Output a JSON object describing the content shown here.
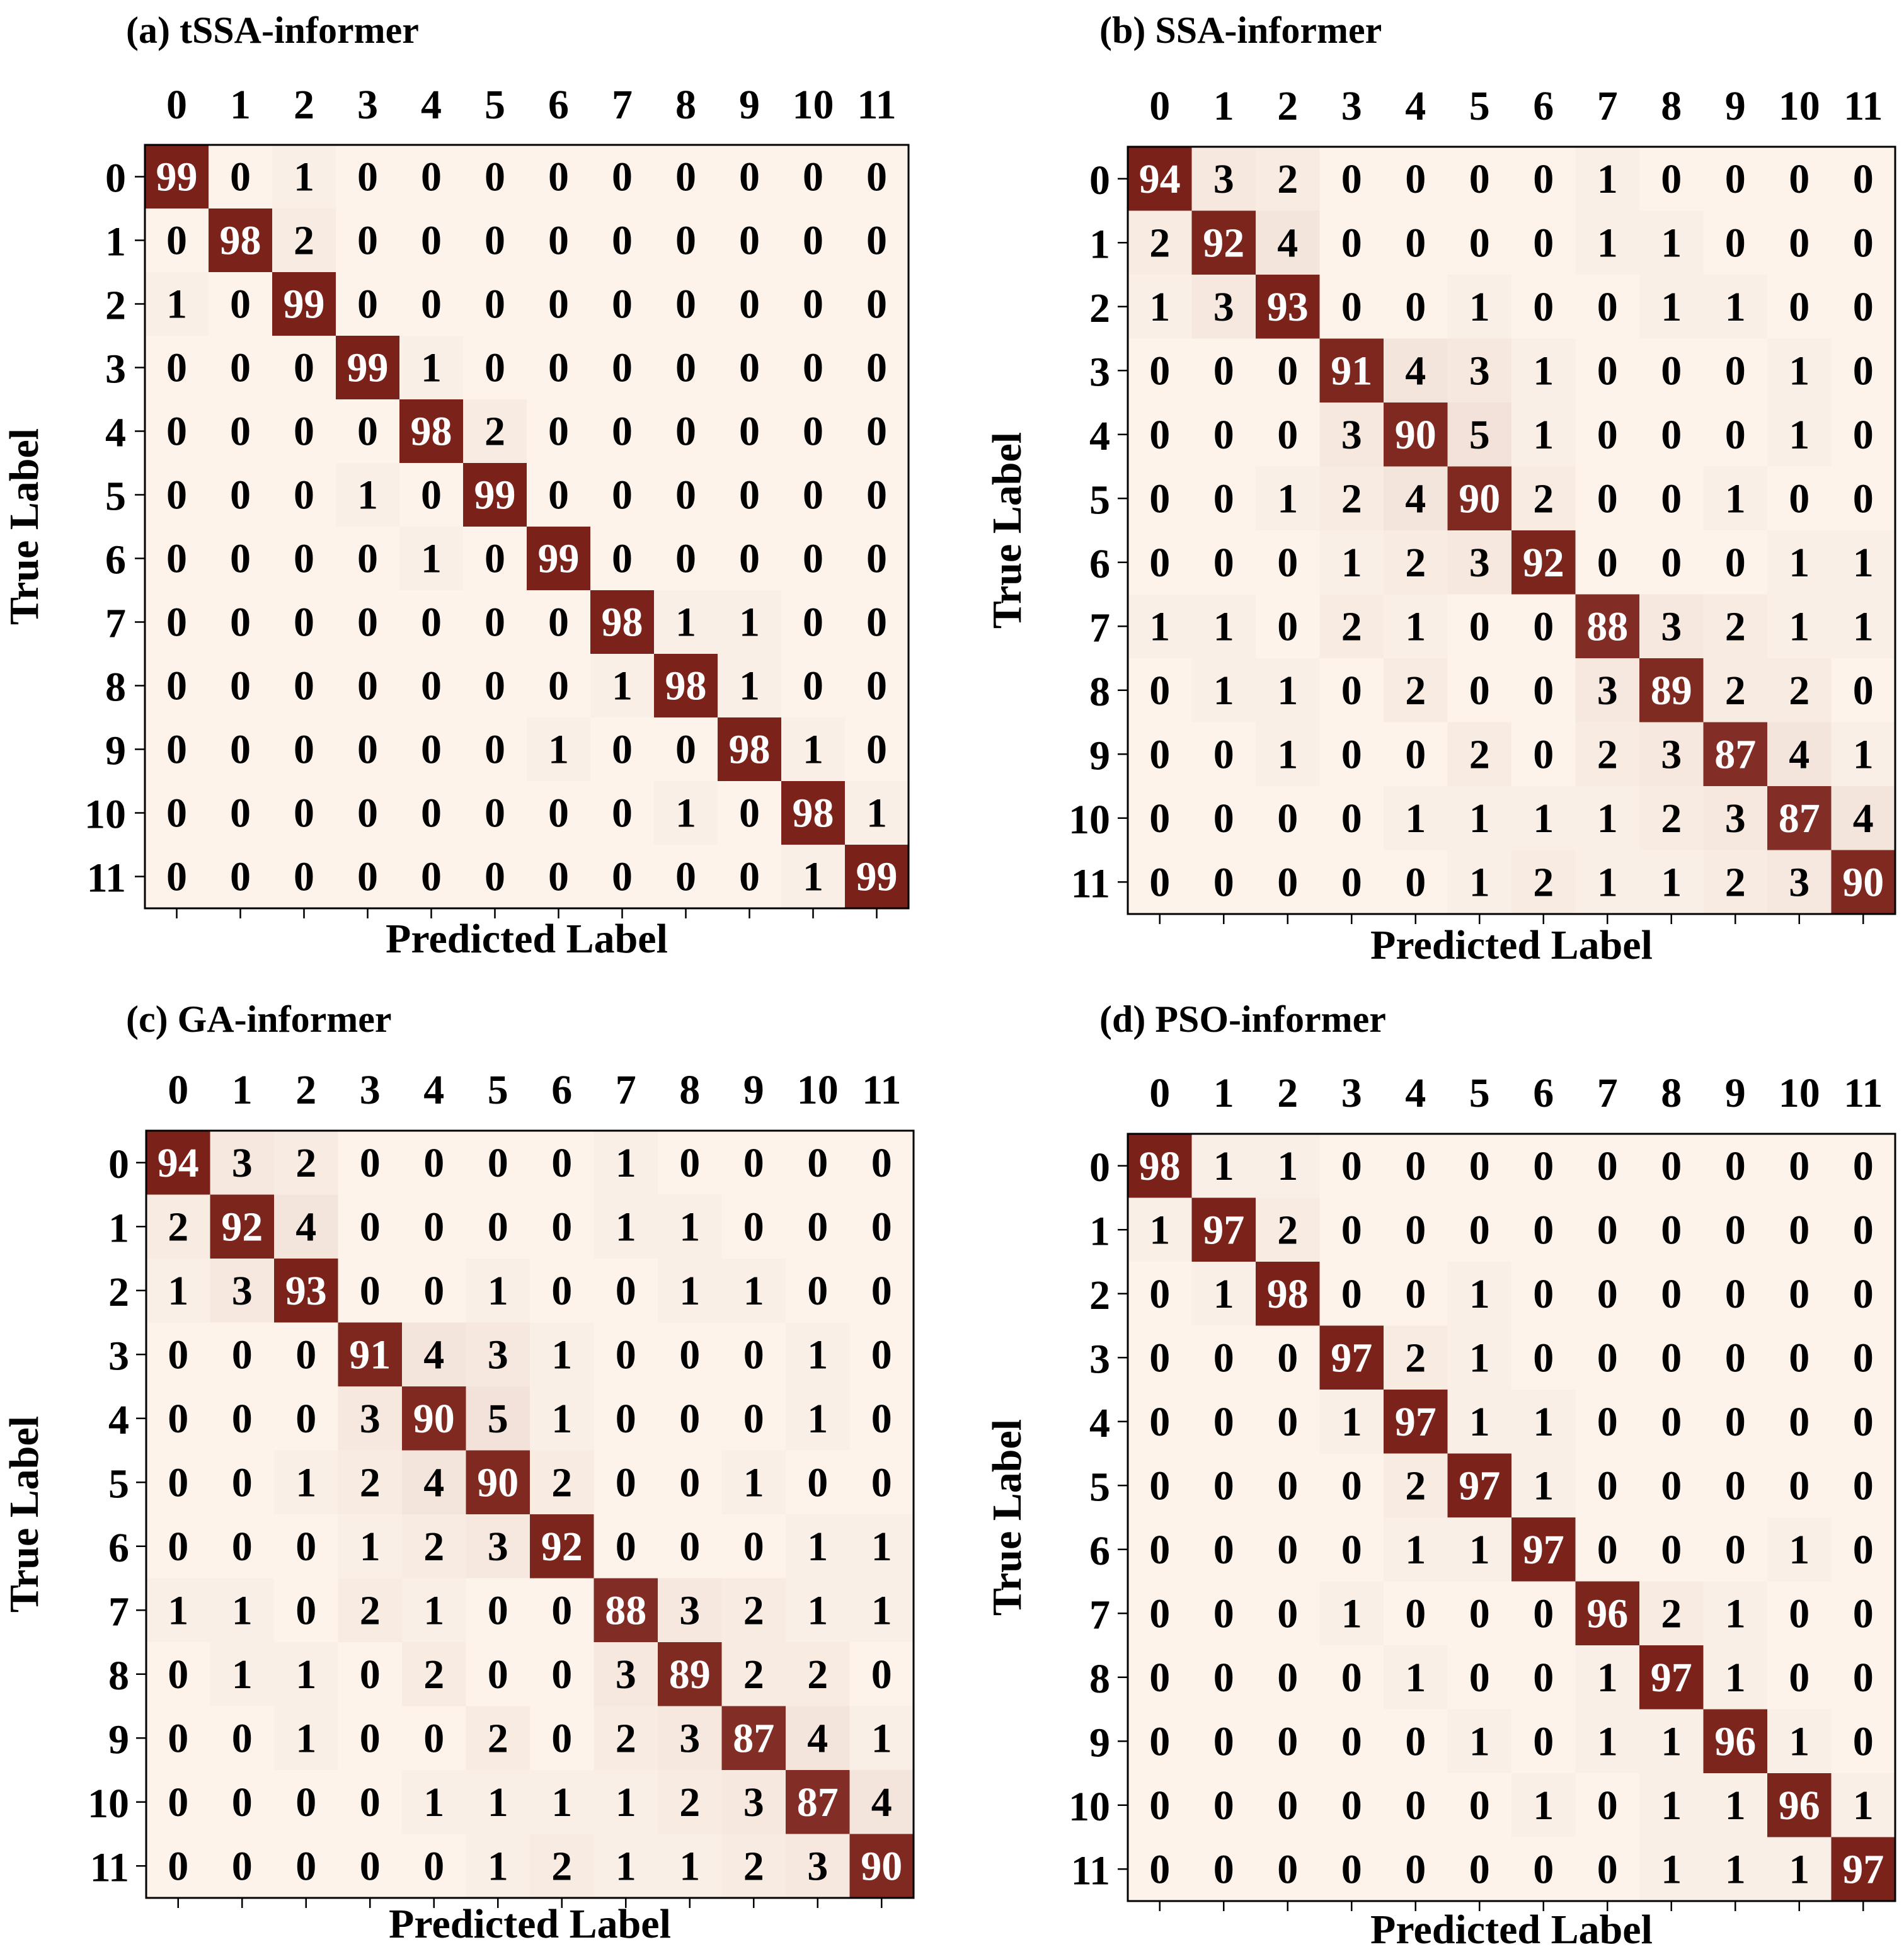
{
  "chart_data": [
    {
      "type": "heatmap",
      "title": "(a) tSSA-informer",
      "xlabel": "Predicted Label",
      "ylabel": "True Label",
      "x_ticks": [
        "0",
        "1",
        "2",
        "3",
        "4",
        "5",
        "6",
        "7",
        "8",
        "9",
        "10",
        "11"
      ],
      "y_ticks": [
        "0",
        "1",
        "2",
        "3",
        "4",
        "5",
        "6",
        "7",
        "8",
        "9",
        "10",
        "11"
      ],
      "values": [
        [
          99,
          0,
          1,
          0,
          0,
          0,
          0,
          0,
          0,
          0,
          0,
          0
        ],
        [
          0,
          98,
          2,
          0,
          0,
          0,
          0,
          0,
          0,
          0,
          0,
          0
        ],
        [
          1,
          0,
          99,
          0,
          0,
          0,
          0,
          0,
          0,
          0,
          0,
          0
        ],
        [
          0,
          0,
          0,
          99,
          1,
          0,
          0,
          0,
          0,
          0,
          0,
          0
        ],
        [
          0,
          0,
          0,
          0,
          98,
          2,
          0,
          0,
          0,
          0,
          0,
          0
        ],
        [
          0,
          0,
          0,
          1,
          0,
          99,
          0,
          0,
          0,
          0,
          0,
          0
        ],
        [
          0,
          0,
          0,
          0,
          1,
          0,
          99,
          0,
          0,
          0,
          0,
          0
        ],
        [
          0,
          0,
          0,
          0,
          0,
          0,
          0,
          98,
          1,
          1,
          0,
          0
        ],
        [
          0,
          0,
          0,
          0,
          0,
          0,
          0,
          1,
          98,
          1,
          0,
          0
        ],
        [
          0,
          0,
          0,
          0,
          0,
          0,
          1,
          0,
          0,
          98,
          1,
          0
        ],
        [
          0,
          0,
          0,
          0,
          0,
          0,
          0,
          0,
          1,
          0,
          98,
          1
        ],
        [
          0,
          0,
          0,
          0,
          0,
          0,
          0,
          0,
          0,
          0,
          1,
          99
        ]
      ]
    },
    {
      "type": "heatmap",
      "title": "(b) SSA-informer",
      "xlabel": "Predicted Label",
      "ylabel": "True Label",
      "x_ticks": [
        "0",
        "1",
        "2",
        "3",
        "4",
        "5",
        "6",
        "7",
        "8",
        "9",
        "10",
        "11"
      ],
      "y_ticks": [
        "0",
        "1",
        "2",
        "3",
        "4",
        "5",
        "6",
        "7",
        "8",
        "9",
        "10",
        "11"
      ],
      "values": [
        [
          94,
          3,
          2,
          0,
          0,
          0,
          0,
          1,
          0,
          0,
          0,
          0
        ],
        [
          2,
          92,
          4,
          0,
          0,
          0,
          0,
          1,
          1,
          0,
          0,
          0
        ],
        [
          1,
          3,
          93,
          0,
          0,
          1,
          0,
          0,
          1,
          1,
          0,
          0
        ],
        [
          0,
          0,
          0,
          91,
          4,
          3,
          1,
          0,
          0,
          0,
          1,
          0
        ],
        [
          0,
          0,
          0,
          3,
          90,
          5,
          1,
          0,
          0,
          0,
          1,
          0
        ],
        [
          0,
          0,
          1,
          2,
          4,
          90,
          2,
          0,
          0,
          1,
          0,
          0
        ],
        [
          0,
          0,
          0,
          1,
          2,
          3,
          92,
          0,
          0,
          0,
          1,
          1
        ],
        [
          1,
          1,
          0,
          2,
          1,
          0,
          0,
          88,
          3,
          2,
          1,
          1
        ],
        [
          0,
          1,
          1,
          0,
          2,
          0,
          0,
          3,
          89,
          2,
          2,
          0
        ],
        [
          0,
          0,
          1,
          0,
          0,
          2,
          0,
          2,
          3,
          87,
          4,
          1
        ],
        [
          0,
          0,
          0,
          0,
          1,
          1,
          1,
          1,
          2,
          3,
          87,
          4
        ],
        [
          0,
          0,
          0,
          0,
          0,
          1,
          2,
          1,
          1,
          2,
          3,
          90
        ]
      ]
    },
    {
      "type": "heatmap",
      "title": "(c) GA-informer",
      "xlabel": "Predicted Label",
      "ylabel": "True Label",
      "x_ticks": [
        "0",
        "1",
        "2",
        "3",
        "4",
        "5",
        "6",
        "7",
        "8",
        "9",
        "10",
        "11"
      ],
      "y_ticks": [
        "0",
        "1",
        "2",
        "3",
        "4",
        "5",
        "6",
        "7",
        "8",
        "9",
        "10",
        "11"
      ],
      "values": [
        [
          94,
          3,
          2,
          0,
          0,
          0,
          0,
          1,
          0,
          0,
          0,
          0
        ],
        [
          2,
          92,
          4,
          0,
          0,
          0,
          0,
          1,
          1,
          0,
          0,
          0
        ],
        [
          1,
          3,
          93,
          0,
          0,
          1,
          0,
          0,
          1,
          1,
          0,
          0
        ],
        [
          0,
          0,
          0,
          91,
          4,
          3,
          1,
          0,
          0,
          0,
          1,
          0
        ],
        [
          0,
          0,
          0,
          3,
          90,
          5,
          1,
          0,
          0,
          0,
          1,
          0
        ],
        [
          0,
          0,
          1,
          2,
          4,
          90,
          2,
          0,
          0,
          1,
          0,
          0
        ],
        [
          0,
          0,
          0,
          1,
          2,
          3,
          92,
          0,
          0,
          0,
          1,
          1
        ],
        [
          1,
          1,
          0,
          2,
          1,
          0,
          0,
          88,
          3,
          2,
          1,
          1
        ],
        [
          0,
          1,
          1,
          0,
          2,
          0,
          0,
          3,
          89,
          2,
          2,
          0
        ],
        [
          0,
          0,
          1,
          0,
          0,
          2,
          0,
          2,
          3,
          87,
          4,
          1
        ],
        [
          0,
          0,
          0,
          0,
          1,
          1,
          1,
          1,
          2,
          3,
          87,
          4
        ],
        [
          0,
          0,
          0,
          0,
          0,
          1,
          2,
          1,
          1,
          2,
          3,
          90
        ]
      ]
    },
    {
      "type": "heatmap",
      "title": "(d) PSO-informer",
      "xlabel": "Predicted Label",
      "ylabel": "True Label",
      "x_ticks": [
        "0",
        "1",
        "2",
        "3",
        "4",
        "5",
        "6",
        "7",
        "8",
        "9",
        "10",
        "11"
      ],
      "y_ticks": [
        "0",
        "1",
        "2",
        "3",
        "4",
        "5",
        "6",
        "7",
        "8",
        "9",
        "10",
        "11"
      ],
      "values": [
        [
          98,
          1,
          1,
          0,
          0,
          0,
          0,
          0,
          0,
          0,
          0,
          0
        ],
        [
          1,
          97,
          2,
          0,
          0,
          0,
          0,
          0,
          0,
          0,
          0,
          0
        ],
        [
          0,
          1,
          98,
          0,
          0,
          1,
          0,
          0,
          0,
          0,
          0,
          0
        ],
        [
          0,
          0,
          0,
          97,
          2,
          1,
          0,
          0,
          0,
          0,
          0,
          0
        ],
        [
          0,
          0,
          0,
          1,
          97,
          1,
          1,
          0,
          0,
          0,
          0,
          0
        ],
        [
          0,
          0,
          0,
          0,
          2,
          97,
          1,
          0,
          0,
          0,
          0,
          0
        ],
        [
          0,
          0,
          0,
          0,
          1,
          1,
          97,
          0,
          0,
          0,
          1,
          0
        ],
        [
          0,
          0,
          0,
          1,
          0,
          0,
          0,
          96,
          2,
          1,
          0,
          0
        ],
        [
          0,
          0,
          0,
          0,
          1,
          0,
          0,
          1,
          97,
          1,
          0,
          0
        ],
        [
          0,
          0,
          0,
          0,
          0,
          1,
          0,
          1,
          1,
          96,
          1,
          0
        ],
        [
          0,
          0,
          0,
          0,
          0,
          0,
          1,
          0,
          1,
          1,
          96,
          1
        ],
        [
          0,
          0,
          0,
          0,
          0,
          0,
          0,
          0,
          1,
          1,
          1,
          97
        ]
      ]
    }
  ],
  "colors": {
    "low": "#fdf3ea",
    "high": "#7a2119",
    "text_dark": "#000000",
    "text_light": "#ffffff",
    "frame": "#000000"
  }
}
